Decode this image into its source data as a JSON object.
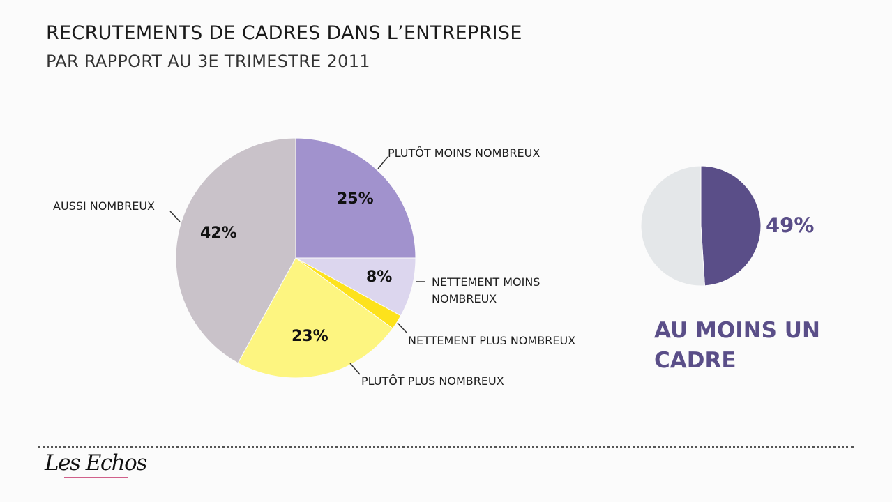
{
  "header": {
    "title": "RECRUTEMENTS DE CADRES DANS L’ENTREPRISE",
    "subtitle": "PAR RAPPORT AU 3E TRIMESTRE 2011"
  },
  "chart_data": [
    {
      "type": "pie",
      "slices": [
        {
          "label": "PLUTÔT MOINS NOMBREUX",
          "value": 25,
          "value_label": "25%",
          "color": "#a192cd"
        },
        {
          "label": "NETTEMENT MOINS NOMBREUX",
          "value": 8,
          "value_label": "8%",
          "color": "#dcd6ee"
        },
        {
          "label": "NETTEMENT PLUS NOMBREUX",
          "value": 2,
          "color": "#fde21c"
        },
        {
          "label": "PLUTÔT PLUS NOMBREUX",
          "value": 23,
          "value_label": "23%",
          "color": "#fdf580"
        },
        {
          "label": "AUSSI NOMBREUX",
          "value": 42,
          "value_label": "42%",
          "color": "#c9c2c9"
        }
      ]
    },
    {
      "type": "pie",
      "title": "AU MOINS UN CADRE",
      "slices": [
        {
          "value": 49,
          "value_label": "49%",
          "color": "#5a4e88"
        },
        {
          "value": 51,
          "color": "#e4e7e9"
        }
      ]
    }
  ],
  "footer": {
    "logo": "Les Echos"
  }
}
